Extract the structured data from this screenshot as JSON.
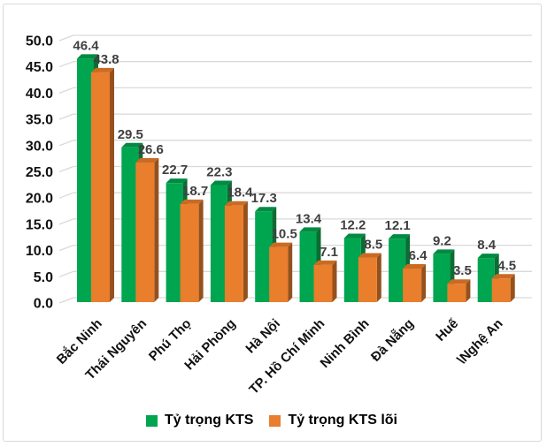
{
  "chart_data": {
    "type": "bar",
    "variant": "3d-clustered-column",
    "title": "",
    "categories": [
      "Bắc Ninh",
      "Thái Nguyên",
      "Phú Thọ",
      "Hải Phòng",
      "Hà Nội",
      "TP. Hồ Chí Minh",
      "Ninh Bình",
      "Đà Nẵng",
      "Huế",
      "\\Nghệ An"
    ],
    "series": [
      {
        "name": "Tỷ trọng KTS",
        "values": [
          46.4,
          29.5,
          22.7,
          22.3,
          17.3,
          13.4,
          12.2,
          12.1,
          9.2,
          8.4
        ],
        "color": "#00a550",
        "color_top": "#008a42",
        "color_side": "#0a6e33"
      },
      {
        "name": "Tỷ trọng KTS lõi",
        "values": [
          43.8,
          26.6,
          18.7,
          18.4,
          10.5,
          7.1,
          8.5,
          6.4,
          3.5,
          4.5
        ],
        "color": "#e97e2d",
        "color_top": "#ca6b23",
        "color_side": "#95511d"
      }
    ],
    "y_axis": {
      "min": 0,
      "max": 50,
      "step": 5,
      "tick_labels": [
        "0.0",
        "5.0",
        "10.0",
        "15.0",
        "20.0",
        "25.0",
        "30.0",
        "35.0",
        "40.0",
        "45.0",
        "50.0"
      ]
    },
    "grid": true,
    "legend_position": "bottom",
    "colors": {
      "gridline": "#d9d9d9",
      "axis_text": "#111111",
      "value_label_text": "#3f3f3f",
      "card_border": "#d9d9d9",
      "background": "#ffffff"
    }
  }
}
